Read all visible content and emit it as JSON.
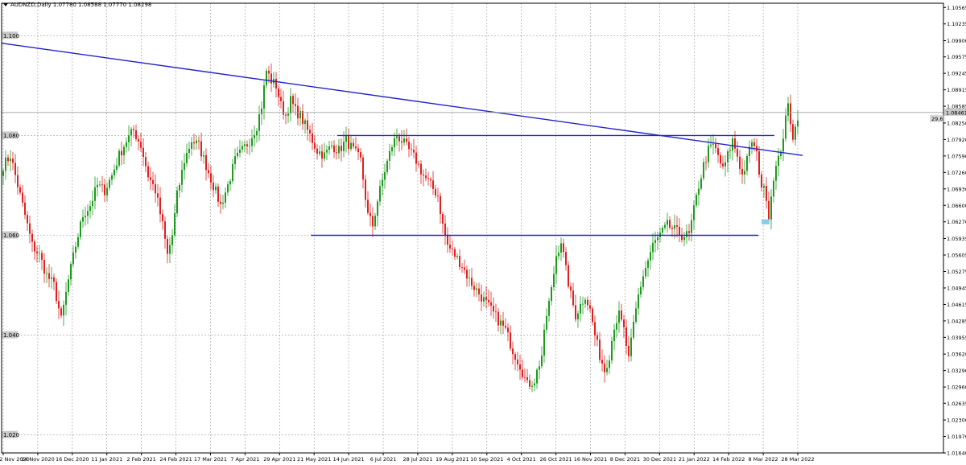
{
  "header": {
    "symbol": "AUDNZD,Daily",
    "ohlc": "1.07780 1.08588 1.07770 1.08298"
  },
  "colors": {
    "bull": "#1e9a1e",
    "bear": "#e02020",
    "trendline": "#2323c8",
    "zone": "#87cde8",
    "grid": "#9a9a9a"
  },
  "chart_data": {
    "type": "candlestick",
    "y_axis_ticks": [
      "1.10565",
      "1.10235",
      "1.09900",
      "1.09575",
      "1.09245",
      "1.08915",
      "1.08585",
      "1.08250",
      "1.07920",
      "1.07590",
      "1.07260",
      "1.06930",
      "1.06600",
      "1.06270",
      "1.05935",
      "1.05605",
      "1.05275",
      "1.04945",
      "1.04615",
      "1.04285",
      "1.03955",
      "1.03620",
      "1.03290",
      "1.02960",
      "1.02635",
      "1.02300",
      "1.01970",
      "1.01640"
    ],
    "level_labels": [
      "1.100",
      "1.080",
      "1.060",
      "1.040",
      "1.020"
    ],
    "current_price": "1.08461",
    "side_label": "29.6",
    "x_axis_labels": [
      "2 Nov 2020",
      "24 Nov 2020",
      "16 Dec 2020",
      "11 Jan 2021",
      "2 Feb 2021",
      "24 Feb 2021",
      "17 Mar 2021",
      "7 Apr 2021",
      "29 Apr 2021",
      "21 May 2021",
      "14 Jun 2021",
      "6 Jul 2021",
      "28 Jul 2021",
      "19 Aug 2021",
      "10 Sep 2021",
      "4 Oct 2021",
      "26 Oct 2021",
      "16 Nov 2021",
      "8 Dec 2021",
      "30 Dec 2021",
      "21 Jan 2022",
      "14 Feb 2022",
      "8 Mar 2022",
      "28 Mar 2022"
    ],
    "ylim": [
      1.0164,
      1.1065
    ],
    "close_path": [
      [
        0,
        1.074
      ],
      [
        3,
        1.076
      ],
      [
        6,
        1.07
      ],
      [
        9,
        1.064
      ],
      [
        12,
        1.058
      ],
      [
        15,
        1.056
      ],
      [
        18,
        1.052
      ],
      [
        21,
        1.05
      ],
      [
        24,
        1.043
      ],
      [
        27,
        1.051
      ],
      [
        30,
        1.058
      ],
      [
        33,
        1.064
      ],
      [
        36,
        1.066
      ],
      [
        39,
        1.07
      ],
      [
        42,
        1.069
      ],
      [
        45,
        1.072
      ],
      [
        48,
        1.076
      ],
      [
        51,
        1.079
      ],
      [
        54,
        1.081
      ],
      [
        57,
        1.078
      ],
      [
        60,
        1.072
      ],
      [
        63,
        1.069
      ],
      [
        66,
        1.062
      ],
      [
        68,
        1.056
      ],
      [
        70,
        1.06
      ],
      [
        72,
        1.068
      ],
      [
        75,
        1.075
      ],
      [
        78,
        1.079
      ],
      [
        81,
        1.078
      ],
      [
        84,
        1.074
      ],
      [
        87,
        1.07
      ],
      [
        90,
        1.066
      ],
      [
        93,
        1.07
      ],
      [
        96,
        1.075
      ],
      [
        99,
        1.077
      ],
      [
        102,
        1.079
      ],
      [
        105,
        1.082
      ],
      [
        107,
        1.086
      ],
      [
        109,
        1.093
      ],
      [
        111,
        1.091
      ],
      [
        113,
        1.09
      ],
      [
        115,
        1.086
      ],
      [
        117,
        1.084
      ],
      [
        119,
        1.087
      ],
      [
        121,
        1.085
      ],
      [
        123,
        1.084
      ],
      [
        125,
        1.082
      ],
      [
        127,
        1.08
      ],
      [
        130,
        1.077
      ],
      [
        133,
        1.076
      ],
      [
        136,
        1.078
      ],
      [
        139,
        1.077
      ],
      [
        142,
        1.079
      ],
      [
        145,
        1.077
      ],
      [
        148,
        1.075
      ],
      [
        151,
        1.064
      ],
      [
        153,
        1.062
      ],
      [
        155,
        1.067
      ],
      [
        158,
        1.073
      ],
      [
        161,
        1.078
      ],
      [
        163,
        1.08
      ],
      [
        165,
        1.079
      ],
      [
        168,
        1.077
      ],
      [
        171,
        1.075
      ],
      [
        174,
        1.072
      ],
      [
        177,
        1.07
      ],
      [
        180,
        1.068
      ],
      [
        182,
        1.062
      ],
      [
        184,
        1.058
      ],
      [
        187,
        1.056
      ],
      [
        190,
        1.054
      ],
      [
        193,
        1.051
      ],
      [
        196,
        1.049
      ],
      [
        199,
        1.047
      ],
      [
        202,
        1.045
      ],
      [
        205,
        1.043
      ],
      [
        208,
        1.041
      ],
      [
        211,
        1.037
      ],
      [
        214,
        1.034
      ],
      [
        217,
        1.03
      ],
      [
        220,
        1.031
      ],
      [
        223,
        1.036
      ],
      [
        225,
        1.044
      ],
      [
        227,
        1.049
      ],
      [
        229,
        1.056
      ],
      [
        231,
        1.059
      ],
      [
        233,
        1.053
      ],
      [
        235,
        1.048
      ],
      [
        237,
        1.044
      ],
      [
        239,
        1.046
      ],
      [
        241,
        1.048
      ],
      [
        243,
        1.045
      ],
      [
        245,
        1.04
      ],
      [
        247,
        1.036
      ],
      [
        249,
        1.033
      ],
      [
        251,
        1.036
      ],
      [
        253,
        1.042
      ],
      [
        255,
        1.044
      ],
      [
        257,
        1.041
      ],
      [
        259,
        1.035
      ],
      [
        261,
        1.042
      ],
      [
        263,
        1.048
      ],
      [
        265,
        1.052
      ],
      [
        267,
        1.055
      ],
      [
        269,
        1.058
      ],
      [
        272,
        1.06
      ],
      [
        275,
        1.062
      ],
      [
        278,
        1.061
      ],
      [
        281,
        1.06
      ],
      [
        284,
        1.06
      ],
      [
        286,
        1.065
      ],
      [
        288,
        1.07
      ],
      [
        290,
        1.074
      ],
      [
        292,
        1.077
      ],
      [
        294,
        1.078
      ],
      [
        296,
        1.076
      ],
      [
        298,
        1.073
      ],
      [
        300,
        1.076
      ],
      [
        302,
        1.079
      ],
      [
        304,
        1.076
      ],
      [
        306,
        1.072
      ],
      [
        308,
        1.075
      ],
      [
        310,
        1.079
      ],
      [
        312,
        1.076
      ],
      [
        314,
        1.07
      ],
      [
        316,
        1.068
      ],
      [
        317,
        1.064
      ],
      [
        319,
        1.072
      ],
      [
        321,
        1.075
      ],
      [
        323,
        1.08
      ],
      [
        325,
        1.086
      ],
      [
        327,
        1.08
      ],
      [
        329,
        1.083
      ]
    ],
    "annotations": {
      "downtrend_line": {
        "from": [
          "2 Nov 2020",
          1.0985
        ],
        "to": [
          "28 Mar 2022",
          1.076
        ]
      },
      "resistance_line": {
        "level": 1.08,
        "from": "14 Jun 2021",
        "to": "28 Mar 2022"
      },
      "support_line": {
        "level": 1.06,
        "from": "21 May 2021",
        "to": "28 Mar 2022"
      },
      "demand_zone": {
        "from": "8 Mar 2022",
        "to": "28 Mar 2022",
        "low": 1.0622,
        "high": 1.0632
      }
    }
  }
}
